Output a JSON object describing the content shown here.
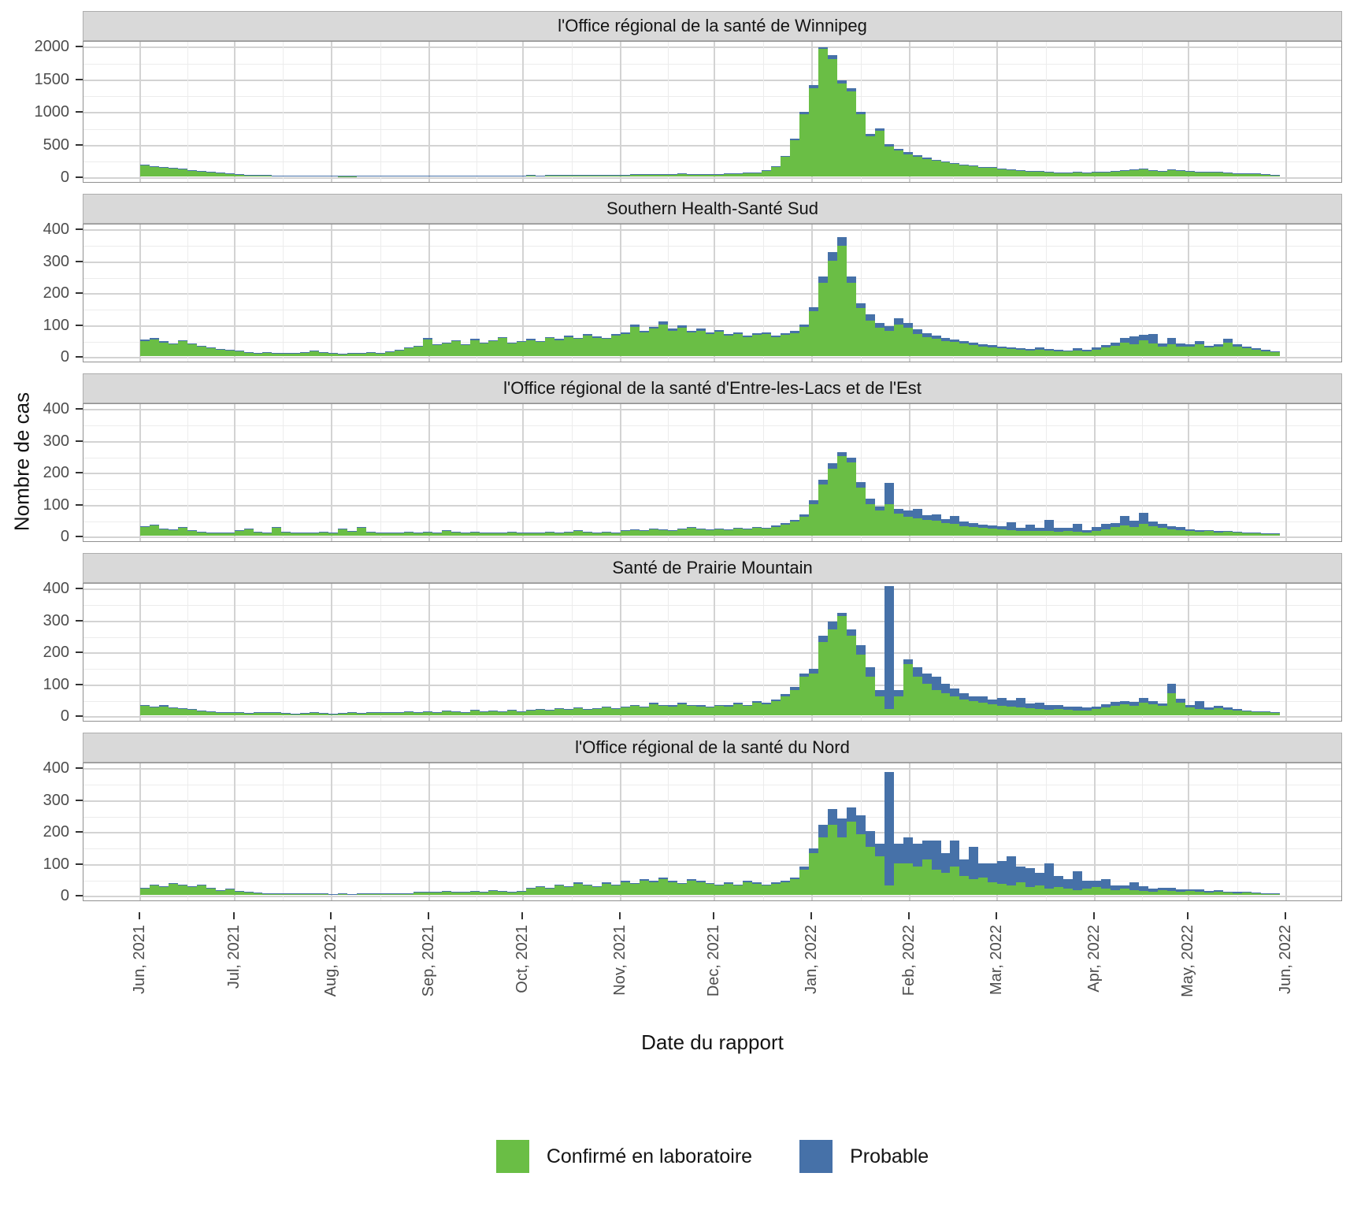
{
  "figure": {
    "y_axis_title": "Nombre de cas",
    "x_axis_title": "Date du rapport",
    "colors": {
      "confirmed": "#6abe45",
      "probable": "#4671a8",
      "strip_background": "#d9d9d9",
      "gridline_major": "#d3d3d3",
      "gridline_minor": "#ececec",
      "panel_border": "#919191",
      "tick_mark": "#333333",
      "tick_label_text": "#4d4d4d",
      "title_text": "#141414"
    },
    "legend": [
      {
        "label": "Confirmé en laboratoire",
        "color_key": "confirmed"
      },
      {
        "label": "Probable",
        "color_key": "probable"
      }
    ]
  },
  "chart_data": {
    "type": "bar",
    "stacked": true,
    "orientation": "vertical",
    "facet_layout": "rows",
    "resolution_note": "Daily reported case counts approximated in 3-day bins from Jun 1 2021 to May 29 2022",
    "bin_days": 3,
    "start_date": "2021-06-01",
    "x_domain_days": [
      0,
      365
    ],
    "x_tick_labels": [
      "Jun, 2021",
      "Jul, 2021",
      "Aug, 2021",
      "Sep, 2021",
      "Oct, 2021",
      "Nov, 2021",
      "Dec, 2021",
      "Jan, 2022",
      "Feb, 2022",
      "Mar, 2022",
      "Apr, 2022",
      "May, 2022",
      "Jun, 2022"
    ],
    "x_tick_day_offsets": [
      0,
      30,
      61,
      92,
      122,
      153,
      183,
      214,
      245,
      273,
      304,
      334,
      365
    ],
    "series_names": [
      "Confirmé en laboratoire",
      "Probable"
    ],
    "panels": [
      {
        "title": "l'Office régional de la santé de Winnipeg",
        "ymax": 2000,
        "yticks": [
          0,
          500,
          1000,
          1500,
          2000
        ],
        "confirmed": [
          170,
          155,
          140,
          125,
          115,
          95,
          80,
          65,
          55,
          45,
          35,
          28,
          22,
          18,
          14,
          12,
          10,
          9,
          10,
          8,
          7,
          6,
          6,
          8,
          7,
          8,
          10,
          12,
          10,
          12,
          13,
          11,
          14,
          12,
          15,
          13,
          14,
          16,
          14,
          12,
          15,
          18,
          15,
          20,
          17,
          22,
          18,
          20,
          17,
          21,
          23,
          26,
          30,
          28,
          34,
          30,
          32,
          38,
          34,
          30,
          28,
          36,
          40,
          46,
          52,
          58,
          90,
          150,
          300,
          550,
          950,
          1350,
          1950,
          1800,
          1420,
          1300,
          950,
          620,
          700,
          460,
          400,
          340,
          300,
          270,
          240,
          215,
          195,
          175,
          155,
          140,
          130,
          115,
          100,
          90,
          82,
          74,
          68,
          62,
          58,
          62,
          55,
          62,
          72,
          82,
          92,
          102,
          112,
          92,
          80,
          102,
          88,
          78,
          70,
          62,
          66,
          55,
          50,
          45,
          40,
          34,
          28
        ],
        "probable": [
          8,
          6,
          6,
          5,
          5,
          4,
          4,
          3,
          3,
          3,
          2,
          2,
          2,
          1,
          1,
          1,
          1,
          1,
          1,
          1,
          1,
          1,
          1,
          1,
          1,
          1,
          1,
          1,
          1,
          1,
          2,
          1,
          2,
          1,
          2,
          1,
          2,
          2,
          1,
          1,
          2,
          2,
          2,
          2,
          2,
          3,
          2,
          3,
          2,
          3,
          3,
          3,
          4,
          3,
          4,
          4,
          4,
          5,
          4,
          4,
          4,
          4,
          5,
          5,
          6,
          6,
          8,
          12,
          18,
          25,
          35,
          45,
          30,
          60,
          50,
          45,
          40,
          32,
          38,
          30,
          28,
          28,
          24,
          20,
          18,
          16,
          14,
          12,
          12,
          10,
          9,
          8,
          7,
          6,
          6,
          5,
          5,
          4,
          4,
          5,
          4,
          5,
          6,
          7,
          8,
          8,
          9,
          8,
          6,
          8,
          7,
          6,
          5,
          5,
          4,
          4,
          4,
          3,
          3,
          3,
          2
        ]
      },
      {
        "title": "Southern Health-Santé Sud",
        "ymax": 400,
        "yticks": [
          0,
          100,
          200,
          300,
          400
        ],
        "confirmed": [
          48,
          52,
          42,
          36,
          46,
          36,
          30,
          25,
          20,
          17,
          15,
          12,
          10,
          12,
          10,
          8,
          10,
          12,
          15,
          12,
          9,
          7,
          8,
          10,
          12,
          10,
          14,
          18,
          24,
          30,
          52,
          34,
          40,
          46,
          34,
          50,
          40,
          46,
          56,
          40,
          44,
          50,
          44,
          56,
          50,
          60,
          54,
          64,
          58,
          54,
          64,
          70,
          92,
          74,
          86,
          100,
          80,
          90,
          74,
          80,
          70,
          76,
          64,
          70,
          60,
          66,
          70,
          60,
          66,
          72,
          92,
          140,
          230,
          300,
          345,
          230,
          150,
          110,
          90,
          80,
          100,
          88,
          70,
          60,
          54,
          48,
          44,
          40,
          34,
          30,
          28,
          25,
          22,
          20,
          18,
          20,
          18,
          16,
          15,
          18,
          16,
          20,
          26,
          32,
          42,
          36,
          50,
          40,
          30,
          36,
          30,
          30,
          36,
          26,
          30,
          42,
          30,
          24,
          20,
          15,
          12
        ],
        "probable": [
          5,
          4,
          4,
          3,
          4,
          3,
          3,
          2,
          2,
          2,
          2,
          1,
          1,
          1,
          1,
          1,
          1,
          1,
          2,
          1,
          1,
          1,
          1,
          1,
          1,
          1,
          2,
          2,
          2,
          3,
          4,
          3,
          3,
          4,
          3,
          4,
          3,
          4,
          4,
          3,
          3,
          4,
          3,
          4,
          4,
          5,
          4,
          5,
          4,
          4,
          5,
          5,
          7,
          6,
          6,
          8,
          6,
          7,
          6,
          6,
          5,
          6,
          5,
          5,
          5,
          5,
          5,
          5,
          5,
          6,
          8,
          12,
          20,
          25,
          28,
          20,
          15,
          20,
          15,
          14,
          18,
          16,
          14,
          12,
          10,
          10,
          9,
          8,
          7,
          6,
          6,
          5,
          5,
          4,
          4,
          8,
          4,
          4,
          3,
          6,
          4,
          6,
          8,
          10,
          14,
          25,
          16,
          30,
          10,
          20,
          10,
          8,
          10,
          6,
          8,
          12,
          8,
          6,
          5,
          4,
          3
        ]
      },
      {
        "title": "l'Office régional de la santé d'Entre-les-Lacs et de l'Est",
        "ymax": 400,
        "yticks": [
          0,
          100,
          200,
          300,
          400
        ],
        "confirmed": [
          26,
          32,
          20,
          18,
          24,
          15,
          12,
          10,
          10,
          8,
          15,
          20,
          12,
          10,
          25,
          12,
          10,
          8,
          10,
          12,
          10,
          20,
          15,
          25,
          12,
          10,
          8,
          10,
          12,
          10,
          12,
          10,
          15,
          12,
          10,
          12,
          10,
          8,
          10,
          12,
          10,
          8,
          10,
          12,
          10,
          12,
          15,
          12,
          10,
          12,
          10,
          15,
          18,
          15,
          20,
          18,
          15,
          20,
          25,
          20,
          18,
          20,
          18,
          22,
          20,
          25,
          22,
          28,
          35,
          45,
          60,
          100,
          160,
          210,
          250,
          230,
          150,
          100,
          80,
          100,
          70,
          60,
          55,
          50,
          46,
          40,
          36,
          30,
          28,
          25,
          22,
          20,
          18,
          16,
          15,
          14,
          15,
          12,
          14,
          12,
          10,
          15,
          20,
          26,
          32,
          26,
          36,
          30,
          25,
          20,
          18,
          15,
          12,
          14,
          10,
          12,
          10,
          8,
          8,
          6,
          5
        ],
        "probable": [
          3,
          3,
          2,
          2,
          2,
          2,
          1,
          1,
          1,
          1,
          2,
          2,
          1,
          1,
          2,
          1,
          1,
          1,
          1,
          1,
          1,
          2,
          1,
          2,
          1,
          1,
          1,
          1,
          1,
          1,
          1,
          1,
          2,
          1,
          1,
          1,
          1,
          1,
          1,
          1,
          1,
          1,
          1,
          1,
          1,
          1,
          2,
          1,
          1,
          1,
          1,
          2,
          2,
          2,
          2,
          2,
          2,
          2,
          3,
          2,
          2,
          2,
          2,
          2,
          2,
          3,
          3,
          3,
          4,
          5,
          7,
          10,
          15,
          18,
          12,
          15,
          18,
          15,
          12,
          65,
          15,
          18,
          30,
          15,
          20,
          12,
          25,
          14,
          12,
          10,
          10,
          10,
          25,
          8,
          20,
          10,
          35,
          12,
          10,
          25,
          8,
          12,
          18,
          14,
          30,
          20,
          35,
          15,
          12,
          10,
          8,
          5,
          6,
          4,
          5,
          4,
          3,
          3,
          2,
          2,
          2
        ]
      },
      {
        "title": "Santé de Prairie Mountain",
        "ymax": 400,
        "yticks": [
          0,
          100,
          200,
          300,
          400
        ],
        "confirmed": [
          30,
          25,
          28,
          22,
          20,
          18,
          15,
          12,
          10,
          10,
          8,
          6,
          8,
          10,
          8,
          6,
          5,
          6,
          8,
          6,
          5,
          6,
          8,
          6,
          8,
          10,
          8,
          10,
          12,
          10,
          12,
          10,
          14,
          12,
          10,
          15,
          12,
          14,
          12,
          15,
          12,
          15,
          18,
          15,
          20,
          18,
          22,
          18,
          20,
          25,
          20,
          25,
          30,
          25,
          35,
          30,
          28,
          35,
          30,
          28,
          25,
          30,
          28,
          35,
          30,
          40,
          35,
          45,
          60,
          80,
          120,
          130,
          230,
          270,
          310,
          250,
          190,
          120,
          60,
          20,
          60,
          160,
          120,
          100,
          80,
          70,
          60,
          50,
          45,
          40,
          35,
          30,
          28,
          25,
          22,
          20,
          18,
          20,
          18,
          16,
          15,
          20,
          25,
          30,
          35,
          30,
          40,
          35,
          30,
          70,
          40,
          25,
          20,
          18,
          22,
          18,
          15,
          12,
          10,
          10,
          8
        ],
        "probable": [
          3,
          2,
          3,
          2,
          2,
          2,
          1,
          1,
          1,
          1,
          1,
          1,
          1,
          1,
          1,
          1,
          1,
          1,
          1,
          1,
          1,
          1,
          1,
          1,
          1,
          1,
          1,
          1,
          1,
          1,
          1,
          1,
          1,
          1,
          1,
          2,
          1,
          1,
          1,
          2,
          1,
          2,
          2,
          2,
          2,
          2,
          2,
          2,
          2,
          3,
          2,
          3,
          3,
          3,
          4,
          3,
          3,
          4,
          3,
          3,
          3,
          3,
          3,
          4,
          3,
          4,
          4,
          5,
          6,
          8,
          12,
          15,
          20,
          25,
          12,
          20,
          30,
          30,
          20,
          385,
          20,
          15,
          30,
          30,
          40,
          30,
          25,
          20,
          15,
          20,
          15,
          25,
          20,
          30,
          15,
          20,
          15,
          12,
          10,
          12,
          10,
          8,
          10,
          12,
          10,
          12,
          15,
          10,
          8,
          30,
          12,
          8,
          25,
          6,
          8,
          6,
          5,
          4,
          3,
          3,
          2
        ]
      },
      {
        "title": "l'Office régional de la santé du Nord",
        "ymax": 400,
        "yticks": [
          0,
          100,
          200,
          300,
          400
        ],
        "confirmed": [
          20,
          30,
          25,
          35,
          30,
          25,
          30,
          20,
          15,
          18,
          12,
          8,
          6,
          5,
          4,
          3,
          4,
          3,
          4,
          3,
          2,
          3,
          2,
          4,
          3,
          5,
          4,
          3,
          5,
          8,
          10,
          8,
          12,
          10,
          8,
          12,
          10,
          14,
          12,
          10,
          12,
          20,
          25,
          20,
          30,
          25,
          35,
          30,
          25,
          35,
          30,
          40,
          35,
          45,
          40,
          50,
          40,
          35,
          45,
          40,
          35,
          30,
          35,
          30,
          40,
          35,
          30,
          35,
          40,
          50,
          80,
          130,
          180,
          220,
          180,
          230,
          190,
          150,
          120,
          30,
          100,
          100,
          90,
          110,
          80,
          70,
          90,
          60,
          50,
          55,
          40,
          35,
          30,
          40,
          25,
          30,
          20,
          25,
          20,
          15,
          20,
          25,
          20,
          15,
          20,
          15,
          12,
          10,
          15,
          12,
          10,
          12,
          10,
          8,
          10,
          8,
          6,
          8,
          5,
          4,
          3
        ],
        "probable": [
          2,
          3,
          2,
          3,
          3,
          2,
          3,
          2,
          1,
          2,
          1,
          1,
          1,
          1,
          1,
          1,
          1,
          1,
          1,
          1,
          1,
          1,
          1,
          1,
          1,
          1,
          1,
          1,
          1,
          1,
          1,
          1,
          1,
          1,
          1,
          1,
          1,
          2,
          1,
          1,
          1,
          2,
          3,
          2,
          3,
          2,
          4,
          3,
          2,
          4,
          3,
          4,
          3,
          5,
          4,
          5,
          4,
          3,
          5,
          4,
          3,
          3,
          4,
          3,
          4,
          4,
          3,
          4,
          4,
          5,
          8,
          15,
          40,
          50,
          60,
          45,
          60,
          50,
          40,
          355,
          60,
          80,
          70,
          60,
          90,
          60,
          80,
          50,
          100,
          45,
          60,
          70,
          90,
          50,
          60,
          40,
          80,
          35,
          30,
          60,
          25,
          20,
          30,
          15,
          10,
          25,
          15,
          10,
          8,
          10,
          8,
          5,
          8,
          5,
          4,
          3,
          4,
          3,
          2,
          2,
          1
        ]
      }
    ]
  }
}
